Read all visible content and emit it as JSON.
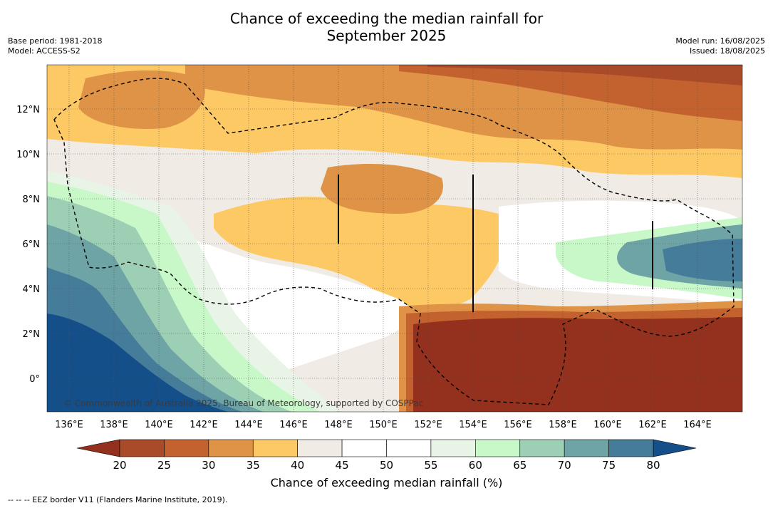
{
  "header": {
    "title_line1": "Chance of exceeding the median rainfall for",
    "title_line2": "September 2025",
    "base_period": "Base period: 1981-2018",
    "model": "Model: ACCESS-S2",
    "model_run": "Model run: 16/08/2025",
    "issued": "Issued: 18/08/2025"
  },
  "map": {
    "lon_labels": [
      "136°E",
      "138°E",
      "140°E",
      "142°E",
      "144°E",
      "146°E",
      "148°E",
      "150°E",
      "152°E",
      "154°E",
      "156°E",
      "158°E",
      "160°E",
      "162°E",
      "164°E"
    ],
    "lat_labels": [
      "12°N",
      "10°N",
      "8°N",
      "6°N",
      "4°N",
      "2°N",
      "0°"
    ],
    "copyright": "© Commonwealth of Australia 2025, Bureau of Meteorology, supported by COSPPac",
    "grid": true
  },
  "colorbar": {
    "ticks": [
      "20",
      "25",
      "30",
      "35",
      "40",
      "45",
      "50",
      "55",
      "60",
      "65",
      "70",
      "75",
      "80"
    ],
    "colors": [
      "#a94a28",
      "#c4622f",
      "#de9346",
      "#fdc964",
      "#f0ebe5",
      "#ffffff",
      "#ffffff",
      "#e8f5e6",
      "#c8f7c8",
      "#9dcfb5",
      "#6ea4a6",
      "#447c99",
      "#144f8a"
    ],
    "under_color": "#93311e",
    "over_color": "#144f8a",
    "label": "Chance of exceeding median rainfall (%)"
  },
  "footnote": "-- -- -- EEZ border V11 (Flanders Marine Institute, 2019)."
}
